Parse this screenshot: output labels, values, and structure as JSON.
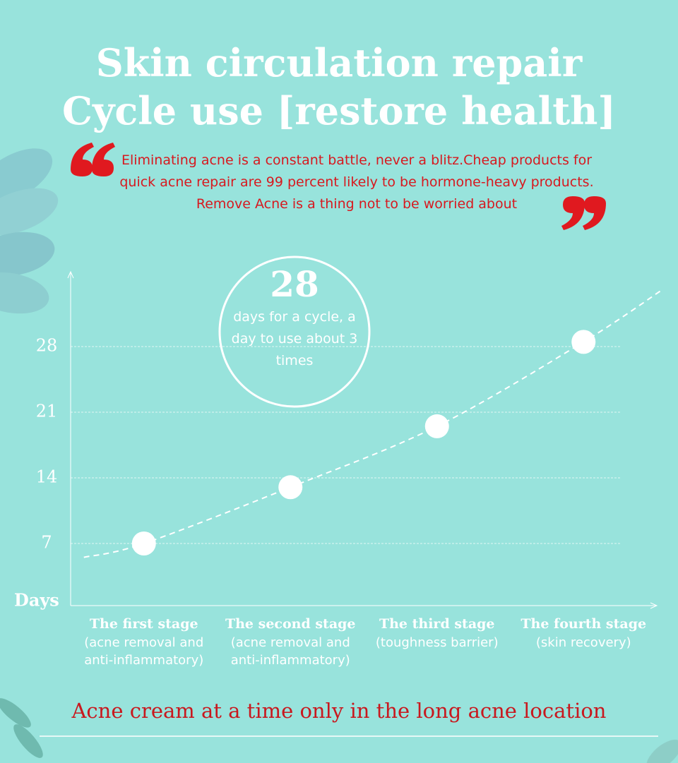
{
  "chart_data": {
    "type": "line",
    "title": "Skin circulation repair",
    "subtitle": "Cycle use [restore health]",
    "quote": "Eliminating acne is a constant battle, never a blitz.Cheap products for quick acne repair are 99 percent likely to be hormone-heavy products. Remove Acne is a thing not to be worried about",
    "highlight": {
      "value": 28,
      "text": "days for a cycle, a day to use about 3 times"
    },
    "ylabel": "Days",
    "categories": [
      "The first stage",
      "The second stage",
      "The third stage",
      "The fourth stage"
    ],
    "category_notes": [
      "(acne removal and anti-inflammatory)",
      "(acne removal and anti-inflammatory)",
      "(toughness barrier)",
      "(skin recovery)"
    ],
    "values": [
      7,
      13,
      19.5,
      28.5
    ],
    "color": "#ffffff",
    "ylim": [
      0,
      35
    ],
    "yticks": [
      7,
      14,
      21,
      28
    ],
    "grid": true,
    "footer": "Acne cream at a time only in the long acne location"
  }
}
